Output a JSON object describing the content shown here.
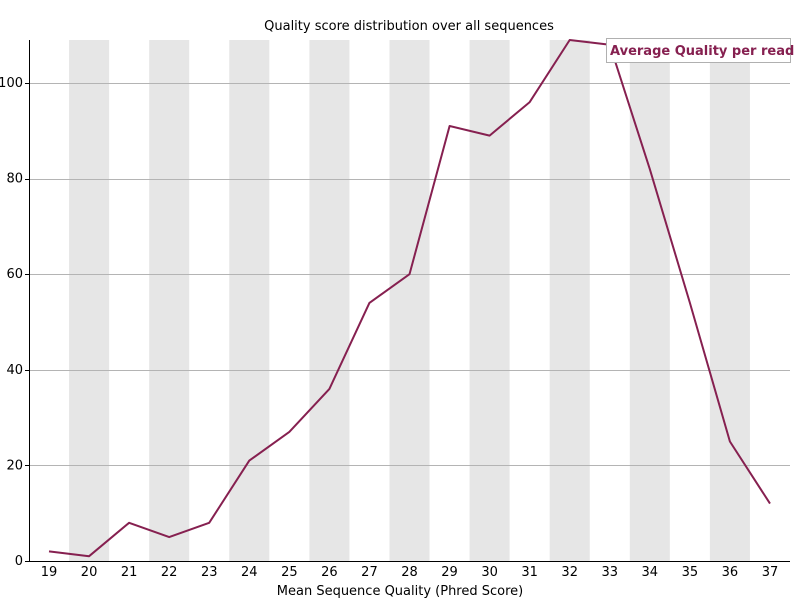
{
  "chart_data": {
    "type": "line",
    "title": "Quality score distribution over all sequences",
    "xlabel": "Mean Sequence Quality (Phred Score)",
    "ylabel": "",
    "x": [
      19,
      20,
      21,
      22,
      23,
      24,
      25,
      26,
      27,
      28,
      29,
      30,
      31,
      32,
      33,
      34,
      35,
      36,
      37
    ],
    "series": [
      {
        "name": "Average Quality per read",
        "values": [
          2,
          1,
          8,
          5,
          8,
          21,
          27,
          36,
          54,
          60,
          91,
          89,
          96,
          109,
          108,
          82,
          54,
          25,
          12
        ],
        "color": "#862050"
      }
    ],
    "xlim": [
      18.5,
      37.5
    ],
    "ylim": [
      0,
      109
    ],
    "yticks": [
      0,
      20,
      40,
      60,
      80,
      100
    ],
    "grid": true,
    "alternating_bands": true,
    "band_color": "#e6e6e6",
    "legend_position": "top-right"
  }
}
